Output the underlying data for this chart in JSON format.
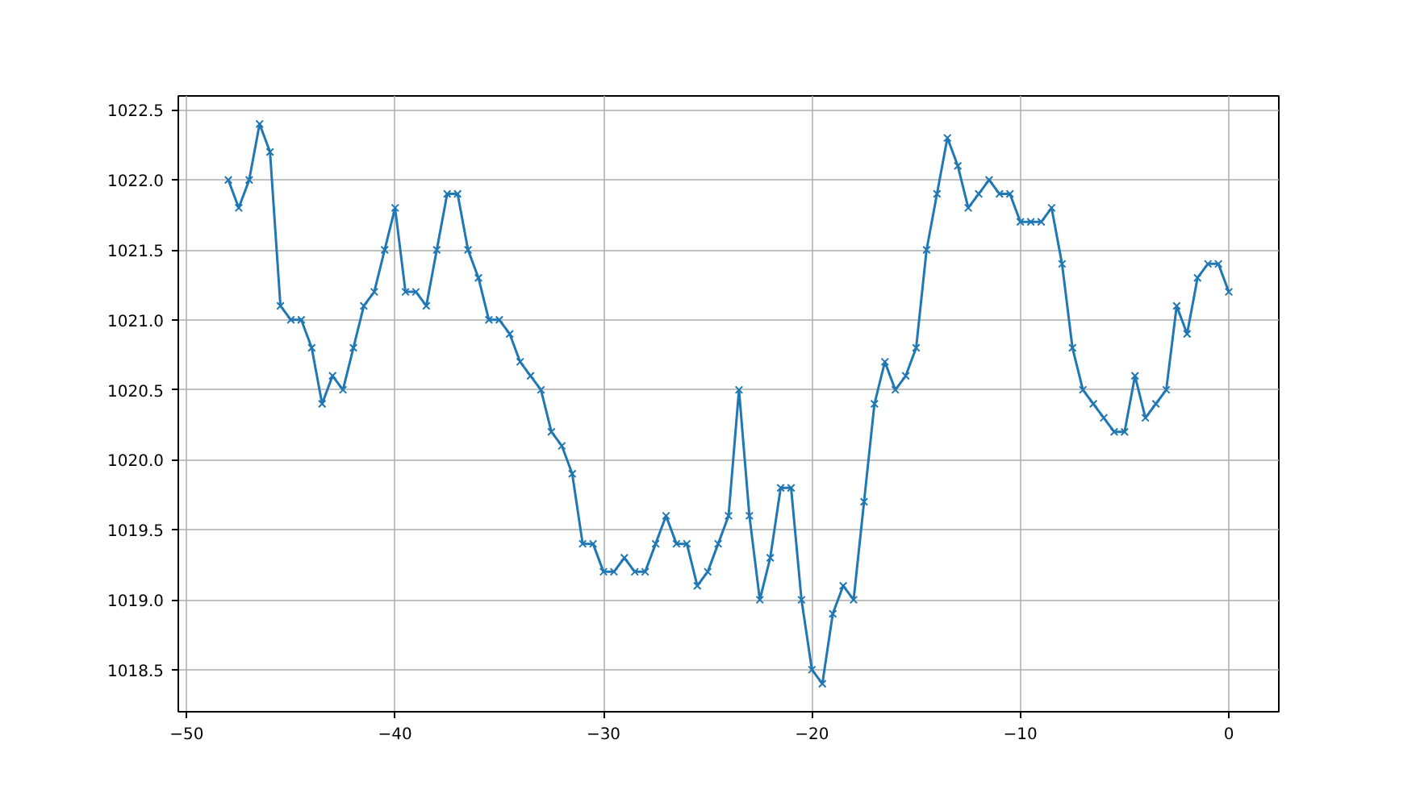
{
  "chart_data": {
    "type": "line",
    "marker": "cross",
    "line_style": "solid",
    "grid": true,
    "x": [
      -48,
      -47.5,
      -47,
      -46.5,
      -46,
      -45.5,
      -45,
      -44.5,
      -44,
      -43.5,
      -43,
      -42.5,
      -42,
      -41.5,
      -41,
      -40.5,
      -40,
      -39.5,
      -39,
      -38.5,
      -38,
      -37.5,
      -37,
      -36.5,
      -36,
      -35.5,
      -35,
      -34.5,
      -34,
      -33.5,
      -33,
      -32.5,
      -32,
      -31.5,
      -31,
      -30.5,
      -30,
      -29.5,
      -29,
      -28.5,
      -28,
      -27.5,
      -27,
      -26.5,
      -26,
      -25.5,
      -25,
      -24.5,
      -24,
      -23.5,
      -23,
      -22.5,
      -22,
      -21.5,
      -21,
      -20.5,
      -20,
      -19.5,
      -19,
      -18.5,
      -18,
      -17.5,
      -17,
      -16.5,
      -16,
      -15.5,
      -15,
      -14.5,
      -14,
      -13.5,
      -13,
      -12.5,
      -12,
      -11.5,
      -11,
      -10.5,
      -10,
      -9.5,
      -9,
      -8.5,
      -8,
      -7.5,
      -7,
      -6.5,
      -6,
      -5.5,
      -5,
      -4.5,
      -4,
      -3.5,
      -3,
      -2.5,
      -2,
      -1.5,
      -1,
      -0.5,
      0
    ],
    "series": [
      {
        "color": "#1f77b4",
        "values": [
          1022.0,
          1021.8,
          1022.0,
          1022.4,
          1022.2,
          1021.1,
          1021.0,
          1021.0,
          1020.8,
          1020.4,
          1020.6,
          1020.5,
          1020.8,
          1021.1,
          1021.2,
          1021.5,
          1021.8,
          1021.2,
          1021.2,
          1021.1,
          1021.5,
          1021.9,
          1021.9,
          1021.5,
          1021.3,
          1021.0,
          1021.0,
          1020.9,
          1020.7,
          1020.6,
          1020.5,
          1020.2,
          1020.1,
          1019.9,
          1019.4,
          1019.4,
          1019.2,
          1019.2,
          1019.3,
          1019.2,
          1019.2,
          1019.4,
          1019.6,
          1019.4,
          1019.4,
          1019.1,
          1019.2,
          1019.4,
          1019.6,
          1020.5,
          1019.6,
          1019.0,
          1019.3,
          1019.8,
          1019.8,
          1019.0,
          1018.5,
          1018.4,
          1018.9,
          1019.1,
          1019.0,
          1019.7,
          1020.4,
          1020.7,
          1020.5,
          1020.6,
          1020.8,
          1021.5,
          1021.9,
          1022.3,
          1022.1,
          1021.8,
          1021.9,
          1022.0,
          1021.9,
          1021.9,
          1021.7,
          1021.7,
          1021.7,
          1021.8,
          1021.4,
          1020.8,
          1020.5,
          1020.4,
          1020.3,
          1020.2,
          1020.2,
          1020.6,
          1020.3,
          1020.4,
          1020.5,
          1021.1,
          1020.9,
          1021.3,
          1021.4,
          1021.4,
          1021.2
        ]
      }
    ],
    "xlim": [
      -50.4,
      2.4
    ],
    "ylim": [
      1018.2,
      1022.6
    ],
    "xticks": [
      {
        "value": -50,
        "label": "−50"
      },
      {
        "value": -40,
        "label": "−40"
      },
      {
        "value": -30,
        "label": "−30"
      },
      {
        "value": -20,
        "label": "−20"
      },
      {
        "value": -10,
        "label": "−10"
      },
      0
    ],
    "yticks": [
      {
        "value": 1018.5,
        "label": "1018.5"
      },
      {
        "value": 1019,
        "label": "1019.0"
      },
      {
        "value": 1019.5,
        "label": "1019.5"
      },
      {
        "value": 1020,
        "label": "1020.0"
      },
      {
        "value": 1020.5,
        "label": "1020.5"
      },
      {
        "value": 1021,
        "label": "1021.0"
      },
      {
        "value": 1021.5,
        "label": "1021.5"
      },
      {
        "value": 1022,
        "label": "1022.0"
      },
      {
        "value": 1022.5,
        "label": "1022.5"
      }
    ]
  }
}
